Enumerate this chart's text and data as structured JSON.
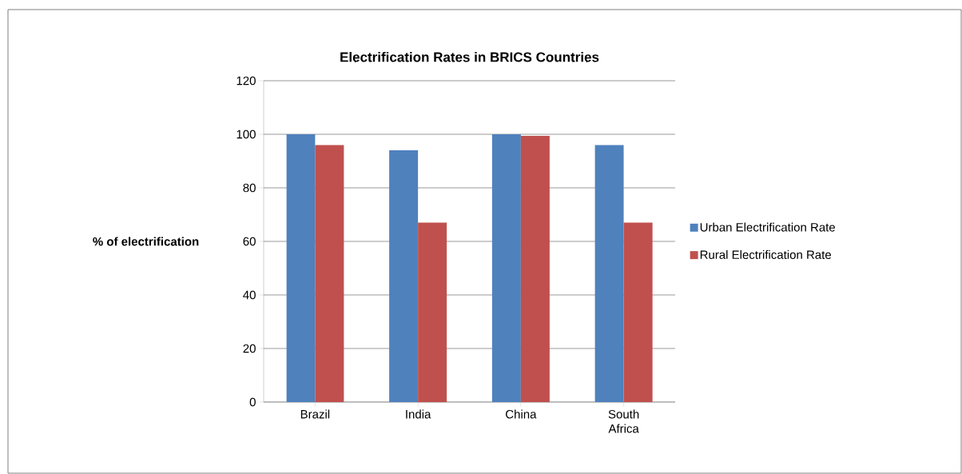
{
  "chart_data": {
    "type": "bar",
    "title": "Electrification Rates in BRICS Countries",
    "ylabel": "% of electrification",
    "categories": [
      "Brazil",
      "India",
      "China",
      "South Africa"
    ],
    "series": [
      {
        "name": "Urban Electrification Rate",
        "color": "#4f81bd",
        "values": [
          100,
          94,
          100,
          96
        ]
      },
      {
        "name": "Rural Electrification Rate",
        "color": "#c0504d",
        "values": [
          96,
          67,
          99.5,
          67
        ]
      }
    ],
    "ylim": [
      0,
      120
    ],
    "yticks": [
      0,
      20,
      40,
      60,
      80,
      100,
      120
    ],
    "grid": "y",
    "legend": "right"
  }
}
